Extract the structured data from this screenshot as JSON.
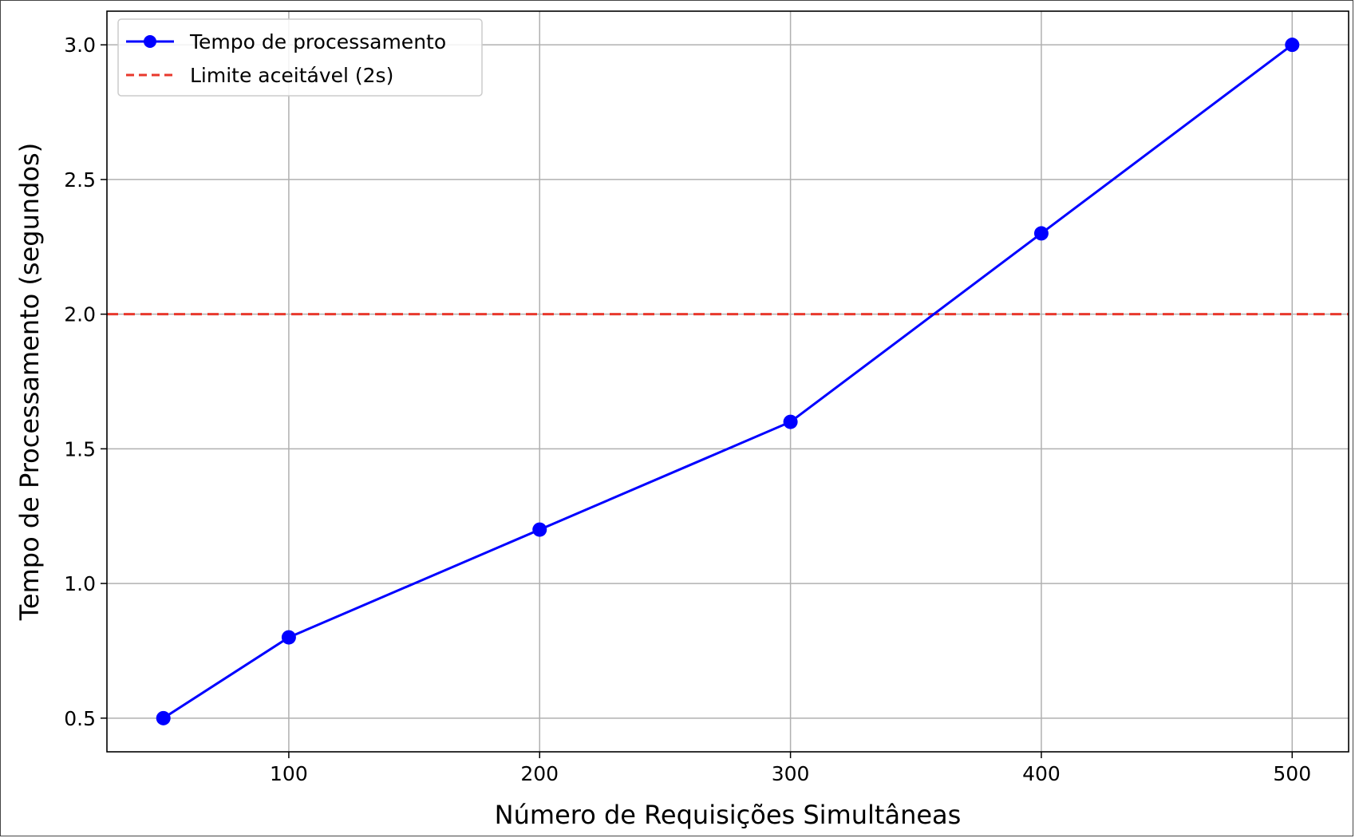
{
  "chart_data": {
    "type": "line",
    "title": "",
    "xlabel": "Número de Requisições Simultâneas",
    "ylabel": "Tempo de Processamento (segundos)",
    "xlim": [
      27.5,
      522.5
    ],
    "ylim": [
      0.375,
      3.125
    ],
    "x_ticks": [
      100,
      200,
      300,
      400,
      500
    ],
    "y_ticks": [
      0.5,
      1.0,
      1.5,
      2.0,
      2.5,
      3.0
    ],
    "y_tick_labels": [
      "0.5",
      "1.0",
      "1.5",
      "2.0",
      "2.5",
      "3.0"
    ],
    "grid": true,
    "legend_position": "top-left",
    "series": [
      {
        "name": "Tempo de processamento",
        "color": "#0000ff",
        "marker": "circle",
        "x": [
          50,
          100,
          200,
          300,
          400,
          500
        ],
        "y": [
          0.5,
          0.8,
          1.2,
          1.6,
          2.3,
          3.0
        ]
      }
    ],
    "reference_lines": [
      {
        "name": "Limite aceitável (2s)",
        "orientation": "horizontal",
        "y": 2.0,
        "color": "#e8382c",
        "style": "dashed"
      }
    ]
  }
}
